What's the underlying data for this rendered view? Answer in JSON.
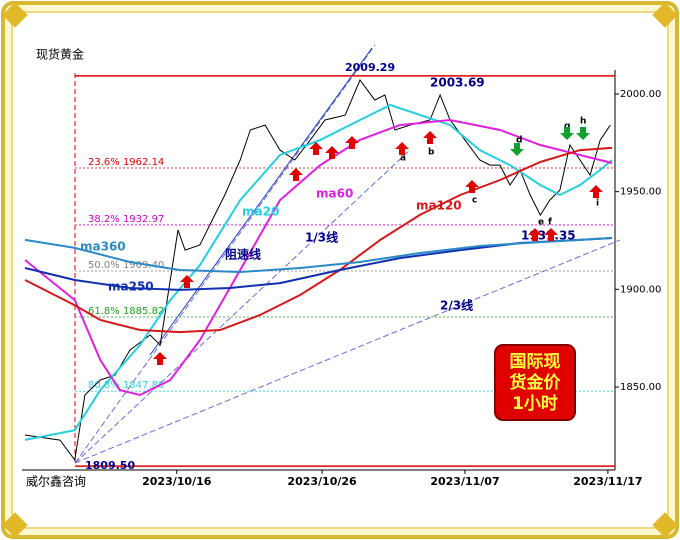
{
  "chart_data": {
    "type": "line",
    "title": "现货黄金",
    "source": "威尔鑫咨询",
    "xlim": [
      0,
      100
    ],
    "xticks": [
      {
        "value": 26.1,
        "label": "2023/10/16"
      },
      {
        "value": 50.6,
        "label": "2023/10/26"
      },
      {
        "value": 74.7,
        "label": "2023/11/07"
      },
      {
        "value": 98.8,
        "label": "2023/11/17"
      }
    ],
    "ylim": [
      1807.5,
      2012.3
    ],
    "yticks": [
      {
        "value": 1850,
        "label": "1850.00"
      },
      {
        "value": 1900,
        "label": "1900.00"
      },
      {
        "value": 1950,
        "label": "1950.00"
      },
      {
        "value": 2000,
        "label": "2000.00"
      }
    ],
    "series": [
      {
        "name": "现货黄金",
        "color": "#000000",
        "x": [
          0.5,
          6.4,
          8.9,
          10.6,
          13.2,
          15.7,
          18.2,
          21.6,
          23.3,
          26.3,
          27.5,
          30.0,
          32.5,
          34.2,
          36.8,
          38.5,
          41.0,
          43.5,
          46.0,
          48.6,
          51.1,
          54.5,
          57.0,
          59.5,
          61.2,
          62.9,
          65.4,
          68.8,
          70.5,
          72.2,
          74.7,
          77.2,
          78.9,
          80.6,
          82.3,
          84.0,
          85.7,
          87.4,
          89.0,
          90.7,
          92.4,
          94.1,
          95.8,
          97.5,
          99.2
        ],
        "values": [
          1825.4,
          1822.8,
          1812.6,
          1845.9,
          1853.6,
          1856.1,
          1868.9,
          1876.6,
          1871.5,
          1930.4,
          1920.1,
          1922.7,
          1938.0,
          1948.3,
          1966.2,
          1981.6,
          1984.1,
          1971.3,
          1966.2,
          1976.4,
          1986.7,
          1989.2,
          2007.2,
          1996.9,
          1999.5,
          1981.6,
          1984.1,
          1986.7,
          1999.5,
          1986.7,
          1976.4,
          1966.2,
          1963.6,
          1963.6,
          1953.4,
          1961.1,
          1948.3,
          1938.0,
          1945.7,
          1950.8,
          1973.9,
          1966.2,
          1958.5,
          1976.4,
          1984.1
        ]
      },
      {
        "name": "ma20",
        "color": "#22d0e0",
        "x": [
          0.5,
          8.9,
          13.2,
          19.9,
          25.0,
          30.0,
          36.8,
          43.5,
          50.3,
          57.0,
          62.1,
          67.1,
          72.2,
          77.2,
          82.3,
          87.4,
          90.7,
          94.1,
          97.5,
          99.5
        ],
        "values": [
          1822.9,
          1827.9,
          1848.4,
          1871.5,
          1894.5,
          1912.4,
          1945.7,
          1968.8,
          1976.5,
          1986.7,
          1994.4,
          1989.3,
          1984.1,
          1971.3,
          1963.6,
          1953.4,
          1948.3,
          1953.4,
          1961.1,
          1966.2
        ]
      },
      {
        "name": "ma60",
        "color": "#e020e0",
        "x": [
          0.5,
          8.9,
          13.2,
          16.5,
          19.9,
          25.0,
          30.0,
          36.8,
          43.5,
          50.3,
          57.0,
          63.7,
          72.2,
          80.6,
          87.4,
          94.1,
          99.5
        ],
        "values": [
          1915.0,
          1894.5,
          1863.8,
          1848.4,
          1845.9,
          1853.6,
          1874.0,
          1909.9,
          1945.7,
          1963.6,
          1976.5,
          1984.1,
          1986.7,
          1981.6,
          1973.9,
          1968.8,
          1964.7
        ]
      },
      {
        "name": "ma120",
        "color": "#d81818",
        "x": [
          0.5,
          8.9,
          13.2,
          19.9,
          26.6,
          33.4,
          40.1,
          46.9,
          53.6,
          60.4,
          67.1,
          73.9,
          80.6,
          87.4,
          94.1,
          99.5
        ],
        "values": [
          1904.8,
          1891.9,
          1884.3,
          1879.2,
          1878.1,
          1879.2,
          1886.8,
          1897.1,
          1909.9,
          1925.3,
          1938.1,
          1948.3,
          1956.0,
          1965.2,
          1971.3,
          1972.4
        ]
      },
      {
        "name": "ma250",
        "color": "#1030b0",
        "x": [
          0.5,
          8.9,
          18.2,
          26.6,
          35.1,
          43.5,
          53.6,
          63.7,
          73.9,
          84.0,
          94.1,
          99.5
        ],
        "values": [
          1910.9,
          1904.8,
          1900.7,
          1899.7,
          1900.7,
          1903.2,
          1909.9,
          1916.0,
          1920.1,
          1923.7,
          1925.3,
          1926.3
        ]
      },
      {
        "name": "ma360",
        "color": "#2a8ac8",
        "x": [
          0.5,
          8.9,
          18.2,
          26.6,
          36.8,
          46.9,
          57.0,
          67.1,
          77.2,
          87.4,
          99.5
        ],
        "values": [
          1925.3,
          1921.2,
          1914.0,
          1909.9,
          1908.9,
          1910.9,
          1914.0,
          1918.6,
          1922.2,
          1924.2,
          1926.3
        ]
      }
    ],
    "levels": [
      {
        "value": 2009.29,
        "label": "2009.29",
        "color": "#e00000"
      },
      {
        "value": 1809.5,
        "label": "1809.50",
        "color": "#e00000"
      }
    ],
    "fib_levels": [
      {
        "value": 1962.14,
        "label": "23.6%  1962.14",
        "color": "#e00000"
      },
      {
        "value": 1932.97,
        "label": "38.2%  1932.97",
        "color": "#d000d0"
      },
      {
        "value": 1909.4,
        "label": "50.0%  1909.40",
        "color": "#808080"
      },
      {
        "value": 1885.82,
        "label": "61.8%  1885.82",
        "color": "#20a020"
      },
      {
        "value": 1847.86,
        "label": "80.8%  1847.86",
        "color": "#30d0e0"
      }
    ],
    "annotations": [
      "2003.69",
      "1931.35",
      "阻速线",
      "1/3线",
      "2/3线",
      "a",
      "b",
      "c",
      "d",
      "e",
      "f",
      "g",
      "h",
      "i"
    ],
    "box_text": [
      "国际现",
      "货金价",
      "1小时"
    ]
  }
}
